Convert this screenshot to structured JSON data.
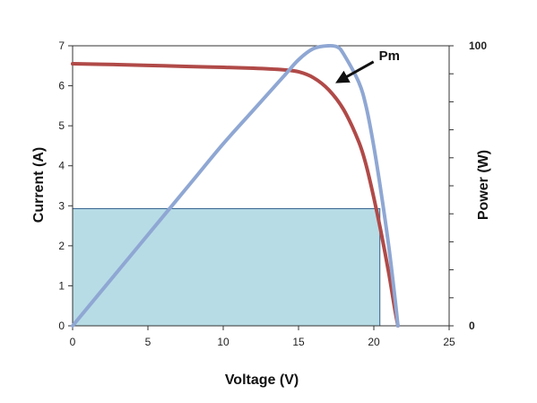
{
  "chart_data": {
    "type": "line",
    "title": "",
    "xlabel": "Voltage (V)",
    "ylabel": "Current (A)",
    "y2label": "Power (W)",
    "xlim": [
      0,
      25
    ],
    "ylim": [
      0,
      7
    ],
    "y2lim": [
      0,
      100
    ],
    "x_ticks": [
      "0",
      "5",
      "10",
      "15",
      "20",
      "25"
    ],
    "y_ticks": [
      "0",
      "1",
      "2",
      "3",
      "4",
      "5",
      "6",
      "7"
    ],
    "y2_ticks": [
      "0",
      "100"
    ],
    "grid": false,
    "legend": "none",
    "series": [
      {
        "axis": "left",
        "color": "#b04a48",
        "points": [
          [
            0,
            6.55
          ],
          [
            3,
            6.53
          ],
          [
            6,
            6.5
          ],
          [
            9,
            6.47
          ],
          [
            12,
            6.44
          ],
          [
            14,
            6.4
          ],
          [
            15,
            6.35
          ],
          [
            16,
            6.2
          ],
          [
            17,
            5.9
          ],
          [
            18,
            5.4
          ],
          [
            19,
            4.6
          ],
          [
            19.5,
            4.0
          ],
          [
            20,
            3.2
          ],
          [
            20.5,
            2.3
          ],
          [
            21,
            1.3
          ],
          [
            21.4,
            0.4
          ],
          [
            21.6,
            0
          ]
        ]
      },
      {
        "axis": "right",
        "color": "#8fa7d3",
        "points": [
          [
            0,
            0
          ],
          [
            2,
            13
          ],
          [
            4,
            26
          ],
          [
            6,
            39
          ],
          [
            8,
            52
          ],
          [
            10,
            65
          ],
          [
            12,
            77
          ],
          [
            14,
            89
          ],
          [
            15,
            95
          ],
          [
            16,
            99
          ],
          [
            17,
            100
          ],
          [
            17.6,
            99.5
          ],
          [
            18,
            97
          ],
          [
            19,
            87
          ],
          [
            19.5,
            78
          ],
          [
            20,
            64
          ],
          [
            20.5,
            47
          ],
          [
            21,
            28
          ],
          [
            21.4,
            10
          ],
          [
            21.6,
            0
          ]
        ]
      }
    ],
    "max_power_rect": {
      "x": 20.4,
      "y": 2.93,
      "fill": "#b7dce6",
      "stroke": "#2f5f8a"
    },
    "annotations": [
      {
        "text": "Pm",
        "x": 20.1,
        "y": 6.6,
        "arrow_to": [
          17.6,
          6.1
        ]
      }
    ]
  }
}
